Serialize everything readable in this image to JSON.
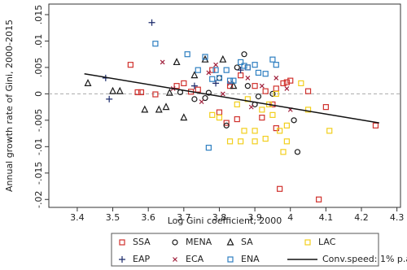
{
  "chart_data": {
    "type": "scatter",
    "x_label": "Log Gini coefficient, 2000",
    "y_label": "Annual growth rate of Gini, 2000-2015",
    "xlim": [
      3.32,
      4.31
    ],
    "ylim": [
      -0.0215,
      0.017
    ],
    "xticks": [
      3.4,
      3.5,
      3.6,
      3.7,
      3.8,
      3.9,
      4,
      4.1,
      4.2,
      4.3
    ],
    "yticks": [
      {
        "value": 0.015,
        "label": ".015"
      },
      {
        "value": 0.01,
        "label": ".01"
      },
      {
        "value": 0.005,
        "label": ".005"
      },
      0,
      {
        "value": -0.005,
        "label": "-.005"
      },
      {
        "value": -0.01,
        "label": "-.01"
      },
      {
        "value": -0.015,
        "label": "-.015"
      },
      {
        "value": -0.02,
        "label": "-.02"
      }
    ],
    "zero_line": true,
    "series": [
      {
        "name": "SSA",
        "color": "#d0312d",
        "marker": "square",
        "x": [
          3.55,
          3.57,
          3.58,
          3.62,
          3.68,
          3.7,
          3.72,
          3.78,
          3.8,
          3.82,
          3.83,
          3.85,
          3.88,
          3.9,
          3.93,
          3.95,
          3.96,
          3.98,
          3.99,
          4.0,
          4.05,
          4.08,
          4.1,
          4.24,
          3.97,
          3.92,
          3.86,
          3.74,
          3.96
        ],
        "values": [
          0.0055,
          0.0003,
          0.0003,
          -0.0001,
          0.0015,
          0.002,
          0.0004,
          0.0045,
          -0.0035,
          -0.0055,
          0.0015,
          -0.0048,
          0.005,
          0.0015,
          0.0005,
          -0.002,
          0.001,
          0.002,
          0.0022,
          0.0025,
          0.0005,
          -0.02,
          -0.0025,
          -0.006,
          -0.018,
          -0.0045,
          0.0035,
          0.0008,
          -0.0065
        ]
      },
      {
        "name": "MENA",
        "color": "#1a1a1a",
        "marker": "circle",
        "x": [
          3.69,
          3.73,
          3.77,
          3.8,
          3.85,
          3.87,
          3.88,
          3.91,
          3.95,
          3.9,
          4.02,
          4.01,
          3.82,
          3.76
        ],
        "values": [
          0.0003,
          -0.001,
          0.0002,
          0.003,
          0.005,
          0.0075,
          0.0015,
          -0.0005,
          0.0,
          -0.002,
          -0.011,
          -0.005,
          -0.006,
          -0.0008
        ]
      },
      {
        "name": "SA",
        "color": "#1a1a1a",
        "marker": "triangle",
        "x": [
          3.43,
          3.5,
          3.52,
          3.59,
          3.63,
          3.65,
          3.68,
          3.7,
          3.73,
          3.76,
          3.81,
          3.84,
          3.66
        ],
        "values": [
          0.002,
          0.0005,
          0.0005,
          -0.003,
          -0.003,
          -0.0025,
          0.006,
          -0.0045,
          0.0035,
          0.0065,
          0.0065,
          0.0015,
          0.0002
        ]
      },
      {
        "name": "LAC",
        "color": "#f2cf1d",
        "marker": "square",
        "x": [
          3.78,
          3.8,
          3.83,
          3.86,
          3.87,
          3.88,
          3.9,
          3.9,
          3.93,
          3.94,
          3.95,
          3.96,
          3.97,
          3.98,
          3.99,
          4.03,
          4.05,
          4.11,
          3.99,
          3.92,
          3.85
        ],
        "values": [
          -0.004,
          -0.0045,
          -0.009,
          -0.009,
          -0.007,
          -0.001,
          -0.007,
          -0.009,
          -0.0085,
          -0.002,
          -0.004,
          0.0,
          -0.007,
          -0.011,
          -0.006,
          0.002,
          -0.003,
          -0.007,
          -0.009,
          -0.003,
          -0.002
        ]
      },
      {
        "name": "EAP",
        "color": "#1b2a6b",
        "marker": "plus",
        "x": [
          3.48,
          3.49,
          3.61,
          3.73,
          3.79,
          3.86
        ],
        "values": [
          0.003,
          -0.001,
          0.0135,
          0.0015,
          0.002,
          0.0045
        ]
      },
      {
        "name": "ECA",
        "color": "#a0203c",
        "marker": "cross",
        "x": [
          3.64,
          3.67,
          3.75,
          3.77,
          3.79,
          3.83,
          3.88,
          3.92,
          3.96,
          3.99,
          4.0,
          3.89,
          3.81
        ],
        "values": [
          0.006,
          0.001,
          -0.0015,
          0.004,
          0.0055,
          0.002,
          0.003,
          0.0015,
          0.003,
          0.001,
          -0.003,
          -0.0025,
          0.0
        ]
      },
      {
        "name": "ENA",
        "color": "#2e7fc1",
        "marker": "square",
        "x": [
          3.62,
          3.71,
          3.74,
          3.76,
          3.78,
          3.79,
          3.8,
          3.82,
          3.83,
          3.86,
          3.87,
          3.88,
          3.9,
          3.91,
          3.93,
          3.77,
          3.84,
          3.95,
          3.96
        ],
        "values": [
          0.0095,
          0.0075,
          0.0045,
          0.007,
          0.0028,
          0.0045,
          0.003,
          0.0045,
          0.0025,
          0.006,
          0.0053,
          0.005,
          0.0055,
          0.004,
          0.0038,
          -0.0102,
          0.0025,
          0.0065,
          0.0055
        ]
      }
    ],
    "fit_line": {
      "name": "Conv.speed: 1% p.a",
      "color": "#111111",
      "x": [
        3.42,
        4.25
      ],
      "values": [
        0.0038,
        -0.0055
      ]
    }
  }
}
